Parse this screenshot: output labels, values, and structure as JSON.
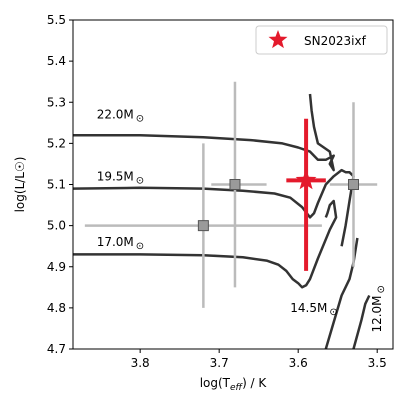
{
  "chart_data": {
    "type": "scatter",
    "xlabel": "log(T$_{eff}$) / K",
    "ylabel": "log(L/L☉)",
    "xlim": [
      3.885,
      3.48
    ],
    "ylim": [
      4.7,
      5.5
    ],
    "x_inverted": true,
    "xticks": [
      3.8,
      3.7,
      3.6,
      3.5
    ],
    "xtick_labels": [
      "3.8",
      "3.7",
      "3.6",
      "3.5"
    ],
    "yticks": [
      4.7,
      4.8,
      4.9,
      5.0,
      5.1,
      5.2,
      5.3,
      5.4,
      5.5
    ],
    "ytick_labels": [
      "4.7",
      "4.8",
      "4.9",
      "5.0",
      "5.1",
      "5.2",
      "5.3",
      "5.4",
      "5.5"
    ],
    "grid": false,
    "legend": {
      "position": "top-right",
      "entries": [
        {
          "label": "SN2023ixf",
          "marker": "star",
          "color": "#e41a2c"
        }
      ]
    },
    "highlight_point": {
      "name": "SN2023ixf",
      "x": 3.59,
      "y": 5.11,
      "xerr": 0.025,
      "yerr_low": 0.22,
      "yerr_high": 0.15,
      "color": "#e41a2c"
    },
    "comparison_points": [
      {
        "x": 3.72,
        "y": 5.0,
        "xerr_low": 0.15,
        "xerr_high": 0.15,
        "yerr": 0.2
      },
      {
        "x": 3.68,
        "y": 5.1,
        "xerr_low": 0.03,
        "xerr_high": 0.04,
        "yerr": 0.25
      },
      {
        "x": 3.53,
        "y": 5.1,
        "xerr_low": 0.03,
        "xerr_high": 0.03,
        "yerr": 0.2
      }
    ],
    "comparison_color": "#bbbbbb",
    "tracks": [
      {
        "label_parts": [
          "22.0M",
          "⊙"
        ],
        "label_x": 3.855,
        "label_y": 5.26,
        "points": [
          [
            3.885,
            5.22
          ],
          [
            3.8,
            5.22
          ],
          [
            3.72,
            5.215
          ],
          [
            3.66,
            5.208
          ],
          [
            3.62,
            5.2
          ],
          [
            3.6,
            5.19
          ],
          [
            3.585,
            5.18
          ],
          [
            3.575,
            5.16
          ],
          [
            3.565,
            5.16
          ],
          [
            3.555,
            5.17
          ],
          [
            3.56,
            5.15
          ],
          [
            3.555,
            5.135
          ],
          [
            3.56,
            5.18
          ],
          [
            3.575,
            5.2
          ],
          [
            3.58,
            5.24
          ],
          [
            3.583,
            5.28
          ],
          [
            3.585,
            5.32
          ]
        ]
      },
      {
        "label_parts": [
          "19.5M",
          "⊙"
        ],
        "label_x": 3.855,
        "label_y": 5.11,
        "points": [
          [
            3.885,
            5.09
          ],
          [
            3.8,
            5.092
          ],
          [
            3.72,
            5.09
          ],
          [
            3.67,
            5.085
          ],
          [
            3.63,
            5.078
          ],
          [
            3.61,
            5.068
          ],
          [
            3.595,
            5.045
          ],
          [
            3.585,
            5.02
          ],
          [
            3.58,
            5.03
          ],
          [
            3.575,
            5.055
          ],
          [
            3.565,
            5.1
          ],
          [
            3.555,
            5.12
          ],
          [
            3.545,
            5.135
          ],
          [
            3.54,
            5.13
          ],
          [
            3.535,
            5.13
          ],
          [
            3.53,
            5.12
          ],
          [
            3.535,
            5.06
          ],
          [
            3.54,
            5.0
          ],
          [
            3.545,
            4.95
          ]
        ]
      },
      {
        "label_parts": [
          "17.0M",
          "⊙"
        ],
        "label_x": 3.855,
        "label_y": 4.95,
        "points": [
          [
            3.885,
            4.93
          ],
          [
            3.8,
            4.93
          ],
          [
            3.72,
            4.928
          ],
          [
            3.67,
            4.923
          ],
          [
            3.64,
            4.915
          ],
          [
            3.625,
            4.905
          ],
          [
            3.615,
            4.89
          ],
          [
            3.607,
            4.87
          ],
          [
            3.6,
            4.86
          ],
          [
            3.595,
            4.85
          ],
          [
            3.59,
            4.855
          ],
          [
            3.585,
            4.87
          ],
          [
            3.575,
            4.92
          ],
          [
            3.56,
            4.99
          ],
          [
            3.552,
            5.02
          ],
          [
            3.555,
            5.06
          ],
          [
            3.56,
            5.05
          ],
          [
            3.563,
            5.03
          ],
          [
            3.565,
            5.02
          ]
        ]
      },
      {
        "label_parts": [
          "14.5M",
          "⊙"
        ],
        "label_x": 3.61,
        "label_y": 4.79,
        "points": [
          [
            3.565,
            4.7
          ],
          [
            3.545,
            4.83
          ],
          [
            3.535,
            4.87
          ],
          [
            3.53,
            4.91
          ],
          [
            3.525,
            4.97
          ]
        ]
      },
      {
        "label_parts": [
          "12.0M",
          "⊙"
        ],
        "label_x": 3.495,
        "label_y": 4.74,
        "label_rotate": -90,
        "points": [
          [
            3.53,
            4.7
          ],
          [
            3.52,
            4.77
          ],
          [
            3.515,
            4.81
          ],
          [
            3.51,
            4.83
          ]
        ]
      }
    ]
  }
}
